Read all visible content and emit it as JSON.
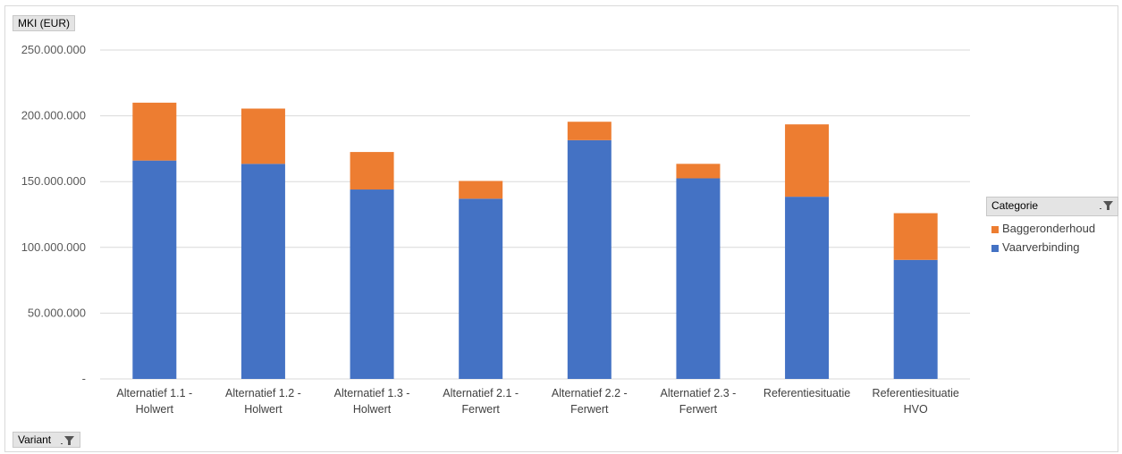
{
  "chart_data": {
    "type": "bar",
    "stacked": true,
    "ylabel": "MKI (EUR)",
    "xlabel": "Variant",
    "ylim": [
      0,
      250000000
    ],
    "yticks": [
      {
        "value": 0,
        "label": "-"
      },
      {
        "value": 50000000,
        "label": "50.000.000"
      },
      {
        "value": 100000000,
        "label": "100.000.000"
      },
      {
        "value": 150000000,
        "label": "150.000.000"
      },
      {
        "value": 200000000,
        "label": "200.000.000"
      },
      {
        "value": 250000000,
        "label": "250.000.000"
      }
    ],
    "categories": [
      [
        "Alternatief 1.1 -",
        "Holwert"
      ],
      [
        "Alternatief 1.2 -",
        "Holwert"
      ],
      [
        "Alternatief 1.3 -",
        "Holwert"
      ],
      [
        "Alternatief 2.1 -",
        "Ferwert"
      ],
      [
        "Alternatief 2.2 -",
        "Ferwert"
      ],
      [
        "Alternatief 2.3 -",
        "Ferwert"
      ],
      [
        "Referentiesituatie"
      ],
      [
        "Referentiesituatie",
        "HVO"
      ]
    ],
    "series": [
      {
        "name": "Vaarverbinding",
        "color": "#4472c4",
        "values": [
          166000000,
          163500000,
          144000000,
          137000000,
          181500000,
          152500000,
          138500000,
          90500000
        ]
      },
      {
        "name": "Baggeronderhoud",
        "color": "#ed7d31",
        "values": [
          44000000,
          42000000,
          28500000,
          13500000,
          14000000,
          11000000,
          55000000,
          35500000
        ]
      }
    ],
    "grid": true,
    "legend_title": "Categorie",
    "legend_position": "right",
    "legend_order": [
      "Baggeronderhoud",
      "Vaarverbinding"
    ]
  }
}
